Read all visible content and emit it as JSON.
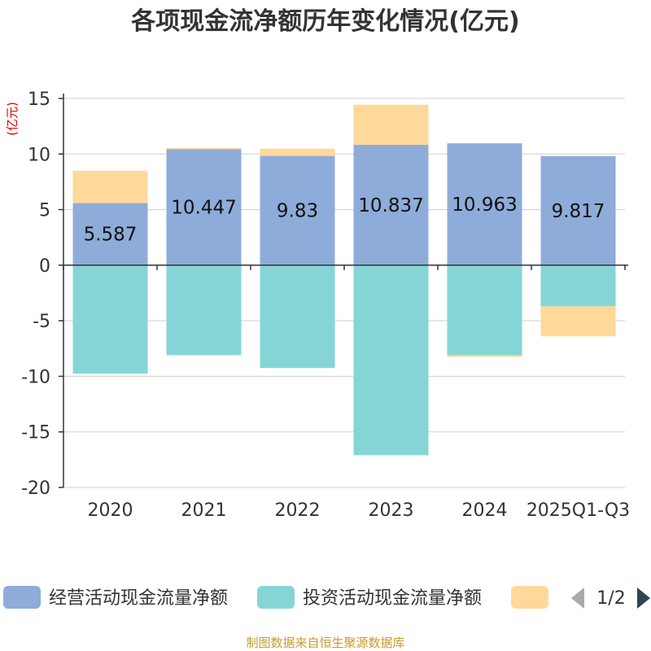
{
  "chart_data": {
    "type": "bar",
    "stacked": true,
    "title": "各项现金流净额历年变化情况(亿元)",
    "ylabel": "(亿元)",
    "xlabel": "",
    "ylim": [
      -20,
      15
    ],
    "yticks": [
      15,
      10,
      5,
      0,
      -5,
      -10,
      -15,
      -20
    ],
    "categories": [
      "2020",
      "2021",
      "2022",
      "2023",
      "2024",
      "2025Q1-Q3"
    ],
    "series": [
      {
        "name": "经营活动现金流量净额",
        "color": "#8eacd9",
        "values": [
          5.587,
          10.447,
          9.83,
          10.837,
          10.963,
          9.817
        ],
        "data_labels": [
          "5.587",
          "10.447",
          "9.83",
          "10.837",
          "10.963",
          "9.817"
        ]
      },
      {
        "name": "投资活动现金流量净额",
        "color": "#86d5d6",
        "values": [
          -9.75,
          -8.1,
          -9.25,
          -17.1,
          -8.1,
          -3.7
        ]
      },
      {
        "name": "",
        "color": "#ffd89a",
        "values": [
          2.9,
          0.1,
          0.65,
          3.6,
          -0.15,
          -2.7
        ]
      }
    ],
    "grid": true,
    "legend_position": "bottom",
    "legend_page": "1/2",
    "source": "制图数据来自恒生聚源数据库"
  }
}
